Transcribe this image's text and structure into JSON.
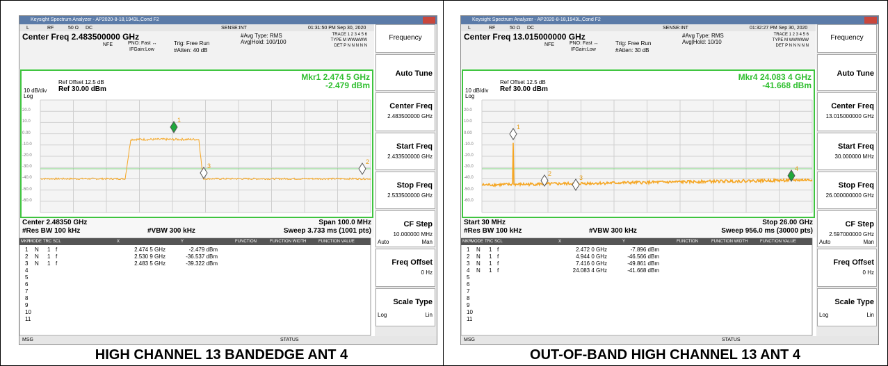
{
  "panels": [
    {
      "caption": "HIGH CHANNEL 13 BANDEDGE ANT 4",
      "window_title": "Keysight Spectrum Analyzer - AP2020-8-18,1943L,Cond F2",
      "toolbar": [
        "L",
        "RF",
        "50 Ω",
        "DC",
        "SENSE:INT"
      ],
      "time": "01:31:50 PM Sep 30, 2020",
      "center_freq": "Center Freq 2.483500000 GHz",
      "nfe": "NFE",
      "pno": "PNO: Fast ↔",
      "ifgain": "IFGain:Low",
      "trig": "Trig: Free Run",
      "atten": "#Atten: 40 dB",
      "avg_type": "#Avg Type: RMS",
      "avg_hold": "Avg|Hold: 100/100",
      "trace_info": [
        "TRACE 1 2 3 4 5 6",
        "TYPE M WWWWW",
        "DET P N N N N N"
      ],
      "mkr_readout": [
        "Mkr1 2.474 5 GHz",
        "-2.479 dBm"
      ],
      "ref_offset": "Ref Offset 12.5 dB",
      "scale": "10 dB/div",
      "ref": "Ref 30.00 dBm",
      "log": "Log",
      "y_labels": [
        "20.0",
        "10.0",
        "0.00",
        "-10.0",
        "-20.0",
        "-30.0",
        "-40.0",
        "-50.0",
        "-60.0"
      ],
      "markers": [
        "1",
        "2",
        "3"
      ],
      "bottom": [
        "Center 2.48350 GHz",
        "Span 100.0 MHz",
        "#Res BW 100 kHz",
        "#VBW 300 kHz",
        "Sweep  3.733 ms (1001 pts)"
      ],
      "table_header": [
        "MKR",
        "MODE",
        "TRC",
        "SCL",
        "X",
        "Y",
        "FUNCTION",
        "FUNCTION WIDTH",
        "FUNCTION VALUE"
      ],
      "table_rows": [
        [
          "1",
          "N",
          "1",
          "f",
          "2.474 5 GHz",
          "-2.479 dBm"
        ],
        [
          "2",
          "N",
          "1",
          "f",
          "2.530 9 GHz",
          "-36.537 dBm"
        ],
        [
          "3",
          "N",
          "1",
          "f",
          "2.483 5 GHz",
          "-39.322 dBm"
        ],
        [
          "4"
        ],
        [
          "5"
        ],
        [
          "6"
        ],
        [
          "7"
        ],
        [
          "8"
        ],
        [
          "9"
        ],
        [
          "10"
        ],
        [
          "11"
        ]
      ],
      "msg": "MSG",
      "status": "STATUS",
      "softkeys": [
        {
          "label": "Frequency"
        },
        {
          "label": "Auto Tune"
        },
        {
          "label": "Center Freq",
          "value": "2.483500000 GHz"
        },
        {
          "label": "Start Freq",
          "value": "2.433500000 GHz"
        },
        {
          "label": "Stop Freq",
          "value": "2.533500000 GHz"
        },
        {
          "label": "CF Step",
          "value": "10.000000 MHz",
          "left": "Auto",
          "right": "Man"
        },
        {
          "label": "Freq Offset",
          "value": "0 Hz"
        },
        {
          "label": "Scale Type",
          "left": "Log",
          "right": "Lin"
        }
      ]
    },
    {
      "caption": "OUT-OF-BAND HIGH CHANNEL 13 ANT 4",
      "window_title": "Keysight Spectrum Analyzer - AP2020-8-18,1943L,Cond F2",
      "toolbar": [
        "L",
        "RF",
        "50 Ω",
        "DC",
        "SENSE:INT"
      ],
      "time": "01:32:27 PM Sep 30, 2020",
      "center_freq": "Center Freq 13.015000000 GHz",
      "nfe": "NFE",
      "pno": "PNO: Fast ↔",
      "ifgain": "IFGain:Low",
      "trig": "Trig: Free Run",
      "atten": "#Atten: 30 dB",
      "avg_type": "#Avg Type: RMS",
      "avg_hold": "Avg|Hold: 10/10",
      "trace_info": [
        "TRACE 1 2 3 4 5 6",
        "TYPE M WWWWW",
        "DET P N N N N N"
      ],
      "mkr_readout": [
        "Mkr4 24.083 4 GHz",
        "-41.668 dBm"
      ],
      "ref_offset": "Ref Offset 12.5 dB",
      "scale": "10 dB/div",
      "ref": "Ref 30.00 dBm",
      "log": "Log",
      "y_labels": [
        "20.0",
        "10.0",
        "0.00",
        "-10.0",
        "-20.0",
        "-30.0",
        "-40.0",
        "-50.0",
        "-60.0"
      ],
      "markers": [
        "1",
        "2",
        "3",
        "4"
      ],
      "bottom": [
        "Start 30 MHz",
        "Stop 26.00 GHz",
        "#Res BW 100 kHz",
        "#VBW 300 kHz",
        "Sweep  956.0 ms (30000 pts)"
      ],
      "table_header": [
        "MKR",
        "MODE",
        "TRC",
        "SCL",
        "X",
        "Y",
        "FUNCTION",
        "FUNCTION WIDTH",
        "FUNCTION VALUE"
      ],
      "table_rows": [
        [
          "1",
          "N",
          "1",
          "f",
          "2.472 0 GHz",
          "-7.896 dBm"
        ],
        [
          "2",
          "N",
          "1",
          "f",
          "4.944 0 GHz",
          "-46.566 dBm"
        ],
        [
          "3",
          "N",
          "1",
          "f",
          "7.416 0 GHz",
          "-49.861 dBm"
        ],
        [
          "4",
          "N",
          "1",
          "f",
          "24.083 4 GHz",
          "-41.668 dBm"
        ],
        [
          "5"
        ],
        [
          "6"
        ],
        [
          "7"
        ],
        [
          "8"
        ],
        [
          "9"
        ],
        [
          "10"
        ],
        [
          "11"
        ]
      ],
      "msg": "MSG",
      "status": "STATUS",
      "softkeys": [
        {
          "label": "Frequency"
        },
        {
          "label": "Auto Tune"
        },
        {
          "label": "Center Freq",
          "value": "13.015000000 GHz"
        },
        {
          "label": "Start Freq",
          "value": "30.000000 MHz"
        },
        {
          "label": "Stop Freq",
          "value": "26.000000000 GHz"
        },
        {
          "label": "CF Step",
          "value": "2.597000000 GHz",
          "left": "Auto",
          "right": "Man"
        },
        {
          "label": "Freq Offset",
          "value": "0 Hz"
        },
        {
          "label": "Scale Type",
          "left": "Log",
          "right": "Lin"
        }
      ]
    }
  ]
}
